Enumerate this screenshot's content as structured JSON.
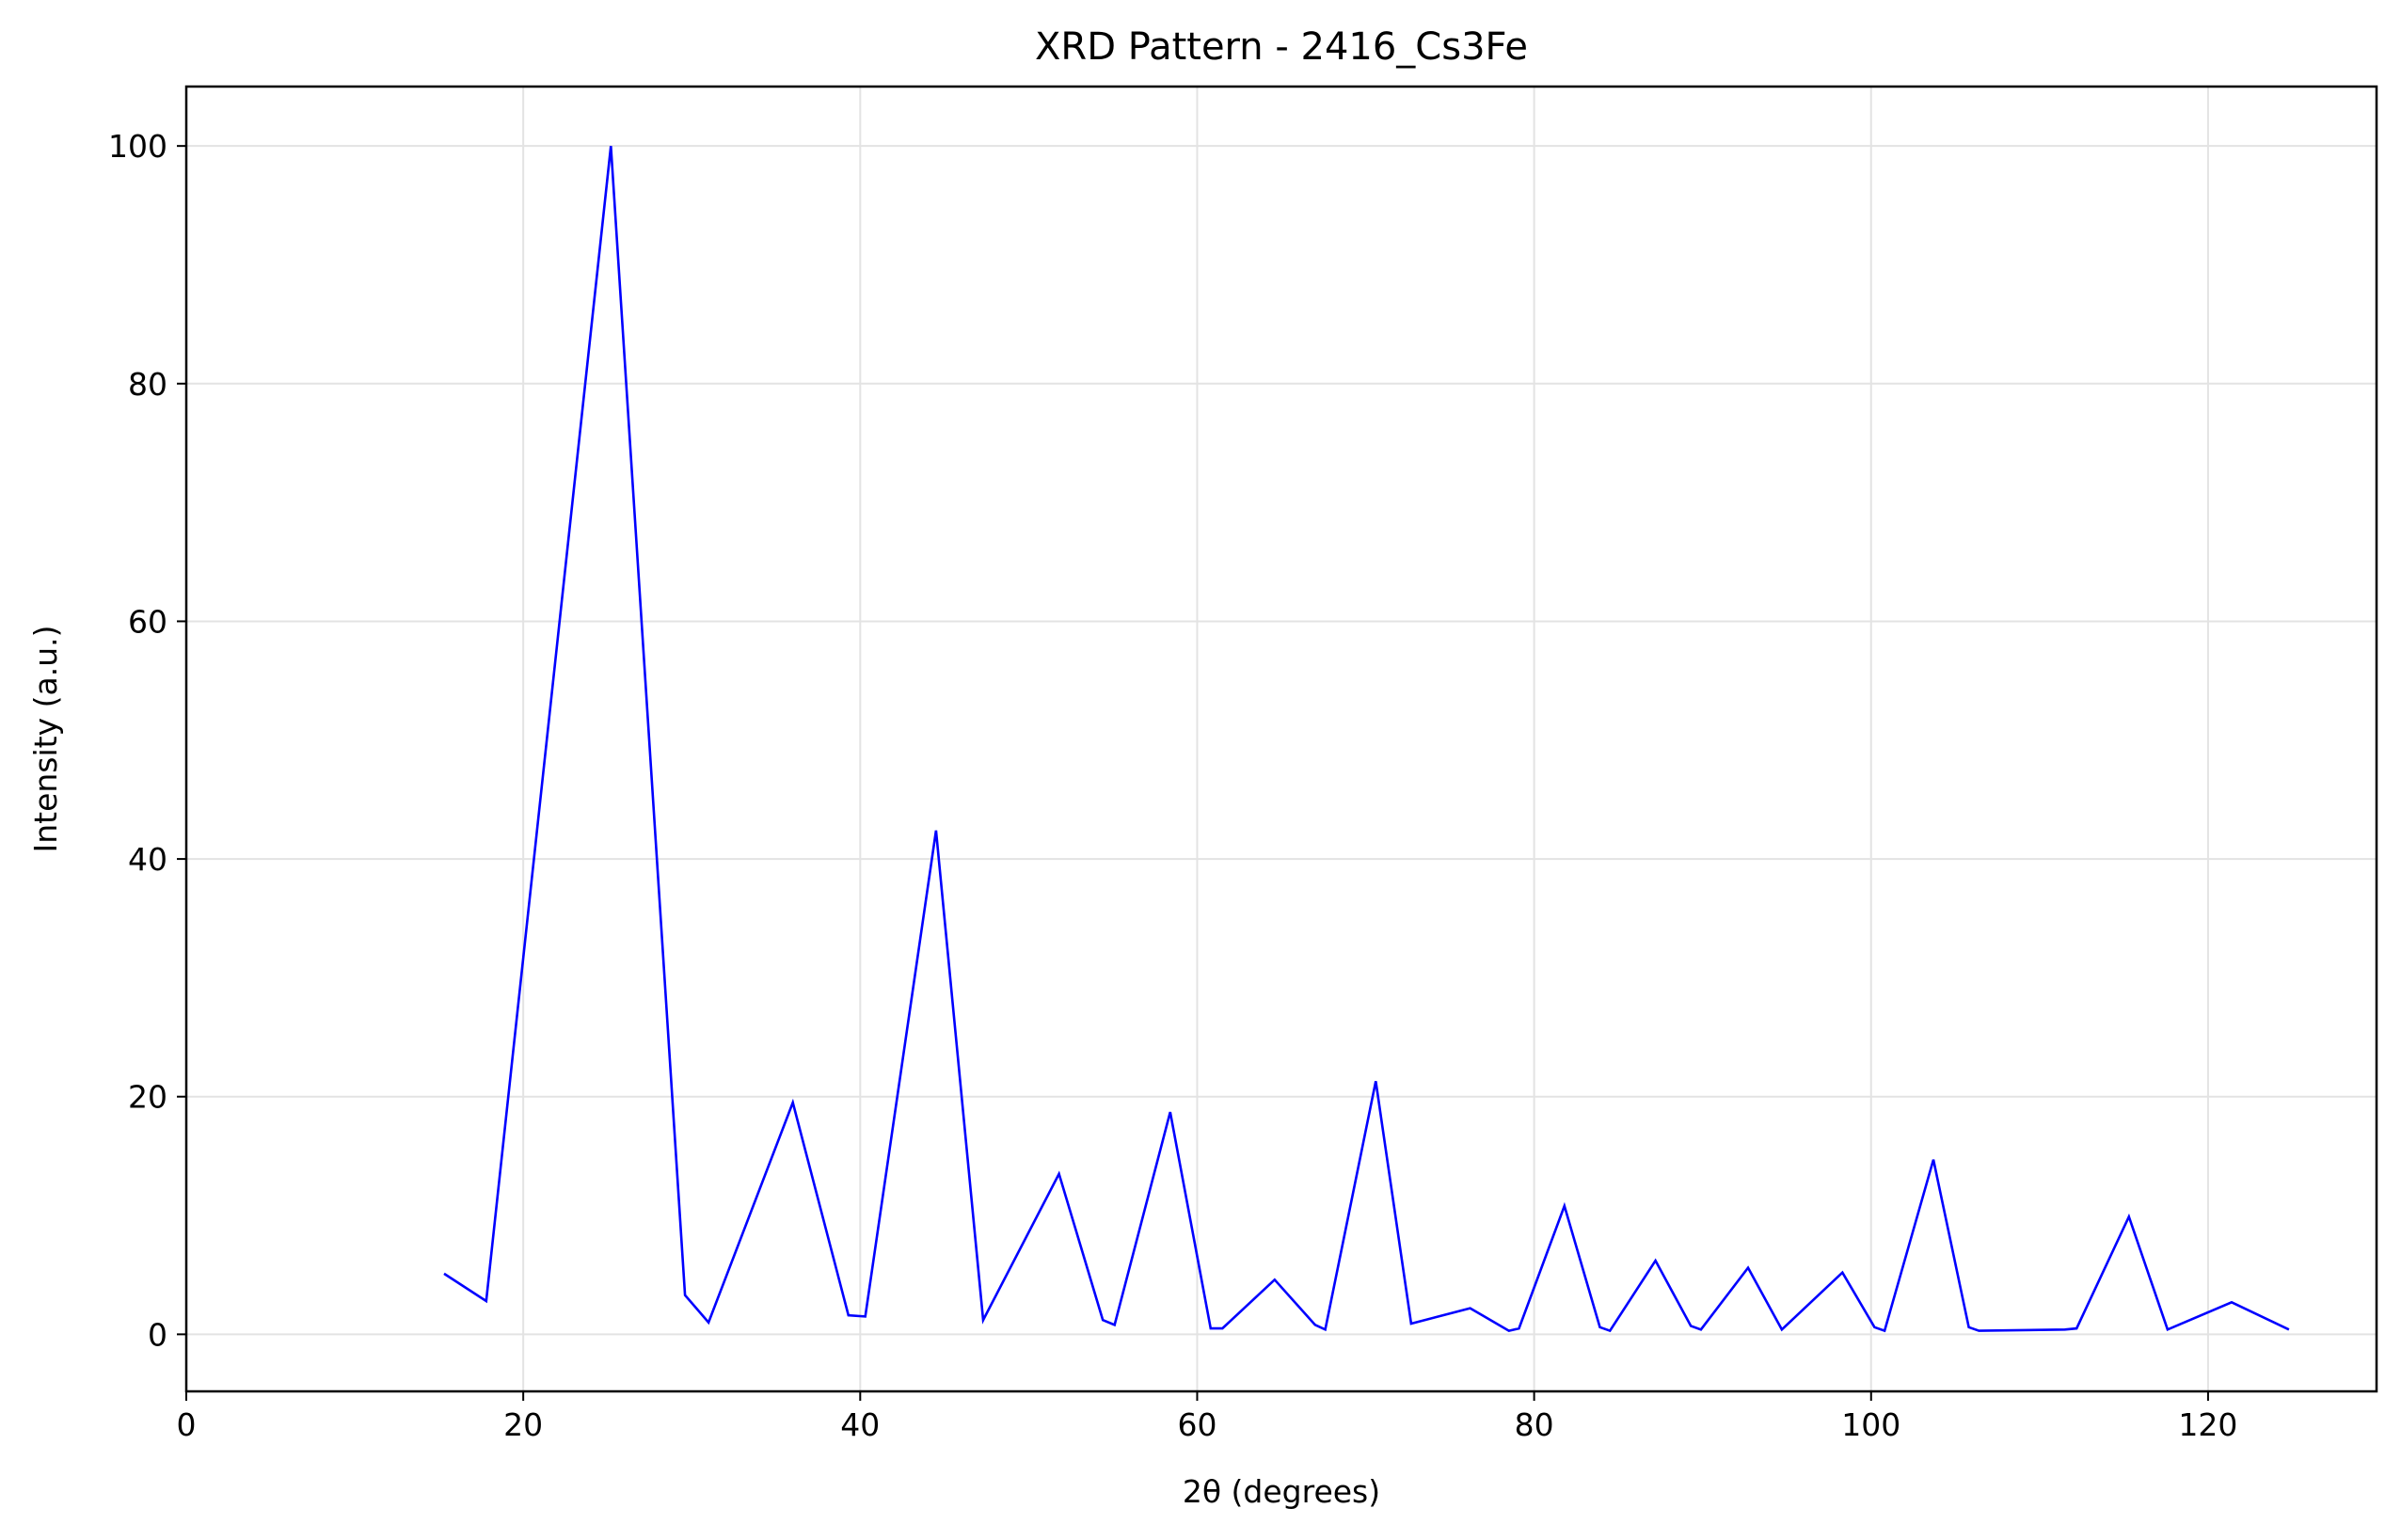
{
  "chart_data": {
    "type": "line",
    "title": "XRD Pattern - 2416_Cs3Fe",
    "xlabel": "2θ (degrees)",
    "ylabel": "Intensity (a.u.)",
    "xlim": [
      0,
      130
    ],
    "ylim": [
      -4.8,
      105
    ],
    "xticks": [
      0,
      20,
      40,
      60,
      80,
      100,
      120
    ],
    "yticks": [
      0,
      20,
      40,
      60,
      80,
      100
    ],
    "grid": true,
    "line_color": "#0000ff",
    "series": [
      {
        "x": [
          15.3,
          17.8,
          25.2,
          29.6,
          31.0,
          36.0,
          39.3,
          40.3,
          44.5,
          47.3,
          51.8,
          54.4,
          55.1,
          58.4,
          60.8,
          61.5,
          64.6,
          67.0,
          67.6,
          70.6,
          72.7,
          76.2,
          78.5,
          79.1,
          81.8,
          83.9,
          84.5,
          87.2,
          89.3,
          89.9,
          92.7,
          94.7,
          98.3,
          100.2,
          100.8,
          103.7,
          105.8,
          106.4,
          111.5,
          112.2,
          115.3,
          117.6,
          121.4,
          124.8
        ],
        "y": [
          5.1,
          2.8,
          100.0,
          3.3,
          1.0,
          19.5,
          1.6,
          1.5,
          42.4,
          1.2,
          13.5,
          1.2,
          0.8,
          18.7,
          0.5,
          0.5,
          4.6,
          0.8,
          0.4,
          21.3,
          0.9,
          2.2,
          0.3,
          0.5,
          10.8,
          0.6,
          0.3,
          6.2,
          0.7,
          0.4,
          5.6,
          0.4,
          5.2,
          0.6,
          0.3,
          14.7,
          0.6,
          0.3,
          0.4,
          0.5,
          9.9,
          0.4,
          2.7,
          0.4
        ]
      }
    ]
  }
}
